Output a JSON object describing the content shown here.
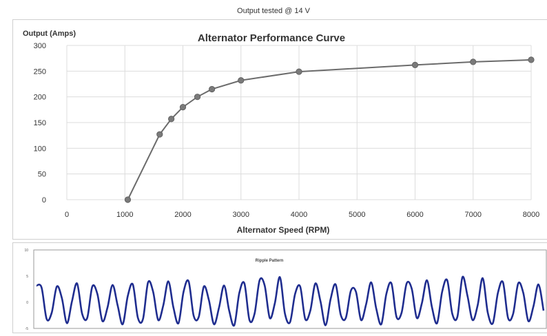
{
  "caption": "Output tested @ 14 V",
  "chart_data": [
    {
      "type": "line",
      "title": "Alternator Performance Curve",
      "xlabel": "Alternator Speed (RPM)",
      "ylabel": "Output (Amps)",
      "xlim": [
        0,
        8000
      ],
      "ylim": [
        0,
        300
      ],
      "xticks": [
        "0",
        "1000",
        "2000",
        "3000",
        "4000",
        "5000",
        "6000",
        "7000",
        "8000"
      ],
      "yticks": [
        "0",
        "50",
        "100",
        "150",
        "200",
        "250",
        "300"
      ],
      "grid": true,
      "line_color": "#6b6b6b",
      "marker_color": "#7a7a7a",
      "series": [
        {
          "x": [
            1050,
            1600,
            1800,
            2000,
            2250,
            2500,
            3000,
            4000,
            6000,
            7000,
            8000
          ],
          "y": [
            0,
            127,
            157,
            180,
            200,
            215,
            232,
            249,
            262,
            268,
            272
          ]
        }
      ]
    },
    {
      "type": "line",
      "title": "Ripple Pattern",
      "yticks": [
        "10",
        "5",
        "0",
        "-5"
      ],
      "ylim": [
        -5,
        10
      ],
      "grid": false,
      "line_color": "#1f2d8f",
      "series": [
        {
          "x": [
            0,
            3,
            6,
            9,
            12,
            15,
            18,
            21,
            24,
            27,
            30,
            33,
            36,
            39,
            42,
            45,
            48,
            51,
            54,
            57,
            60,
            63,
            66,
            69,
            72,
            75,
            78,
            81,
            84,
            87,
            90,
            93,
            96,
            99,
            102,
            105,
            108,
            111,
            114,
            117,
            120,
            123,
            126,
            129,
            132,
            135,
            138,
            141,
            144,
            147,
            150,
            153,
            156,
            159,
            162,
            165,
            168,
            171,
            174,
            177,
            180,
            183,
            186,
            189,
            192,
            195,
            198,
            201,
            204,
            207,
            210,
            213,
            216,
            219,
            222,
            225,
            228,
            231,
            234,
            237,
            240,
            243,
            246,
            249,
            252,
            255,
            258,
            261,
            264,
            267,
            270,
            273,
            276,
            279,
            282,
            285,
            288,
            291,
            294,
            297,
            300
          ],
          "y": [
            3.2,
            2.8,
            -3.2,
            -2.0,
            3.0,
            0.8,
            -4.0,
            0.2,
            3.6,
            -2.2,
            -3.0,
            3.0,
            1.6,
            -3.6,
            -1.0,
            3.3,
            -0.6,
            -4.2,
            1.2,
            3.4,
            -3.0,
            -3.2,
            3.8,
            2.0,
            -3.4,
            -0.6,
            4.0,
            -1.0,
            -4.0,
            2.0,
            4.0,
            -2.6,
            -2.8,
            3.0,
            0.4,
            -4.2,
            -1.0,
            3.2,
            -1.6,
            -4.4,
            1.8,
            3.6,
            -3.4,
            -2.2,
            4.2,
            3.2,
            -3.0,
            -0.2,
            4.8,
            -2.2,
            -3.8,
            1.6,
            3.0,
            -3.2,
            -1.6,
            3.6,
            0.2,
            -4.4,
            0.6,
            3.4,
            -2.4,
            -3.0,
            2.2,
            2.0,
            -3.4,
            -0.4,
            3.8,
            -1.2,
            -4.2,
            1.6,
            3.6,
            -2.8,
            -2.0,
            3.6,
            2.6,
            -3.0,
            -0.2,
            4.2,
            -1.0,
            -4.0,
            2.0,
            4.2,
            -2.2,
            -2.8,
            4.8,
            1.2,
            -3.4,
            -0.6,
            4.6,
            -2.0,
            -4.0,
            1.8,
            3.8,
            -3.0,
            -2.2,
            3.6,
            1.8,
            -3.6,
            -0.8,
            3.4,
            -1.6
          ]
        }
      ]
    }
  ]
}
